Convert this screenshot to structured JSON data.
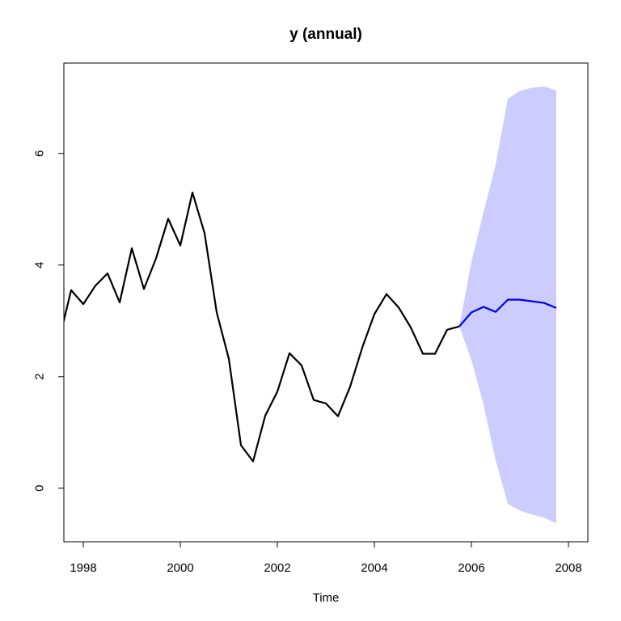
{
  "chart_data": {
    "type": "line",
    "title": "y (annual)",
    "xlabel": "Time",
    "ylabel": "",
    "xlim": [
      1997.6,
      2008.4
    ],
    "ylim": [
      -0.96,
      7.62
    ],
    "x_ticks": [
      1998,
      2000,
      2002,
      2004,
      2006,
      2008
    ],
    "x_tick_labels": [
      "1998",
      "2000",
      "2002",
      "2004",
      "2006",
      "2008"
    ],
    "y_ticks": [
      0,
      2,
      4,
      6
    ],
    "y_tick_labels": [
      "0",
      "2",
      "4",
      "6"
    ],
    "grid": false,
    "series": [
      {
        "role": "observed",
        "color": "#000000",
        "x": [
          1997.5,
          1997.75,
          1998.0,
          1998.25,
          1998.5,
          1998.75,
          1999.0,
          1999.25,
          1999.5,
          1999.75,
          2000.0,
          2000.25,
          2000.5,
          2000.75,
          2001.0,
          2001.25,
          2001.5,
          2001.75,
          2002.0,
          2002.25,
          2002.5,
          2002.75,
          2003.0,
          2003.25,
          2003.5,
          2003.75,
          2004.0,
          2004.25,
          2004.5,
          2004.75,
          2005.0,
          2005.25,
          2005.5,
          2005.75
        ],
        "y": [
          2.65,
          3.55,
          3.3,
          3.63,
          3.85,
          3.33,
          4.3,
          3.57,
          4.12,
          4.83,
          4.35,
          5.3,
          4.57,
          3.15,
          2.32,
          0.77,
          0.48,
          1.3,
          1.73,
          2.42,
          2.2,
          1.58,
          1.52,
          1.29,
          1.82,
          2.52,
          3.12,
          3.48,
          3.24,
          2.88,
          2.41,
          2.41,
          2.84,
          2.9
        ]
      },
      {
        "role": "forecast",
        "color": "#0000ee",
        "x": [
          2005.75,
          2006.0,
          2006.25,
          2006.5,
          2006.75,
          2007.0,
          2007.25,
          2007.5,
          2007.75
        ],
        "y": [
          2.9,
          3.15,
          3.25,
          3.16,
          3.38,
          3.38,
          3.35,
          3.32,
          3.23
        ]
      }
    ],
    "interval": {
      "color": "#ccccff",
      "x": [
        2005.75,
        2006.0,
        2006.25,
        2006.5,
        2006.75,
        2007.0,
        2007.25,
        2007.5,
        2007.75
      ],
      "lower": [
        2.9,
        2.3,
        1.5,
        0.5,
        -0.28,
        -0.4,
        -0.47,
        -0.53,
        -0.63
      ],
      "upper": [
        2.9,
        4.05,
        4.95,
        5.8,
        6.98,
        7.12,
        7.18,
        7.2,
        7.13
      ]
    }
  }
}
